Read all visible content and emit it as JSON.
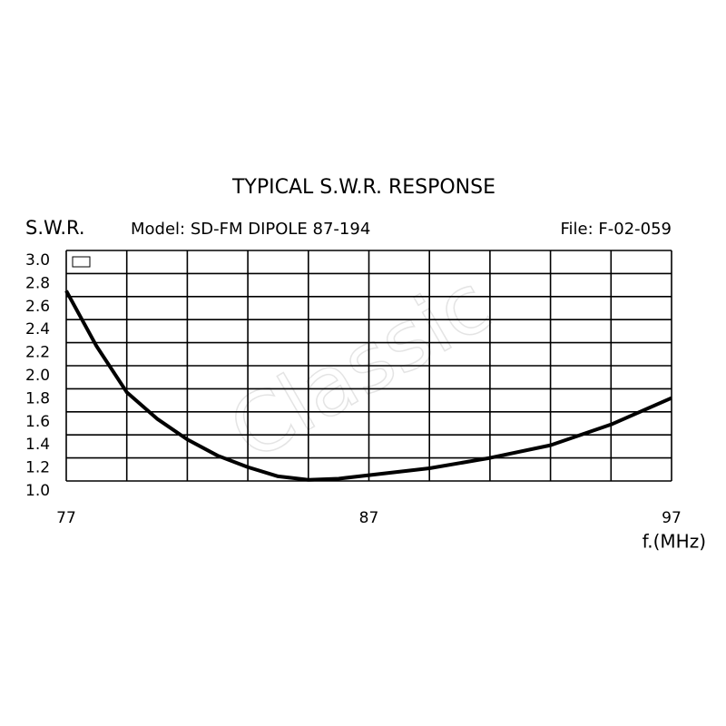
{
  "chart_data": {
    "type": "line",
    "title": "TYPICAL S.W.R. RESPONSE",
    "ylabel": "S.W.R.",
    "subtitle": "Model:  SD-FM DIPOLE 87-194",
    "file": "File:  F-02-059",
    "xlabel": "f.(MHz)",
    "watermark": "Classic",
    "x": [
      77,
      78,
      79,
      80,
      81,
      82,
      83,
      84,
      85,
      86,
      87,
      89,
      91,
      93,
      95,
      97
    ],
    "series": [
      {
        "name": "S.W.R.",
        "color": "#000000",
        "values": [
          2.65,
          2.17,
          1.77,
          1.54,
          1.36,
          1.22,
          1.12,
          1.04,
          1.01,
          1.02,
          1.05,
          1.11,
          1.2,
          1.31,
          1.49,
          1.72
        ]
      }
    ],
    "xlim": [
      77,
      97
    ],
    "xticks": [
      77,
      {
        "value": 79,
        "label": null
      },
      {
        "value": 81,
        "label": null
      },
      {
        "value": 83,
        "label": null
      },
      {
        "value": 85,
        "label": null
      },
      87,
      {
        "value": 89,
        "label": null
      },
      {
        "value": 91,
        "label": null
      },
      {
        "value": 93,
        "label": null
      },
      {
        "value": 95,
        "label": null
      },
      97
    ],
    "ylim": [
      1,
      3
    ],
    "yticks": [
      {
        "value": 1,
        "label": "1.0"
      },
      {
        "value": 1.2,
        "label": "1.2"
      },
      {
        "value": 1.4,
        "label": "1.4"
      },
      {
        "value": 1.6,
        "label": "1.6"
      },
      {
        "value": 1.8,
        "label": "1.8"
      },
      {
        "value": 2,
        "label": "2.0"
      },
      {
        "value": 2.2,
        "label": "2.2"
      },
      {
        "value": 2.4,
        "label": "2.4"
      },
      {
        "value": 2.6,
        "label": "2.6"
      },
      {
        "value": 2.8,
        "label": "2.8"
      },
      {
        "value": 3,
        "label": "3.0"
      }
    ],
    "grid": true
  }
}
